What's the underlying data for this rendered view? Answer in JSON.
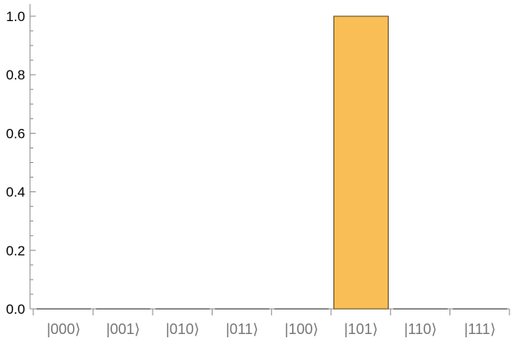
{
  "chart_data": {
    "type": "bar",
    "categories": [
      "|000⟩",
      "|001⟩",
      "|010⟩",
      "|011⟩",
      "|100⟩",
      "|101⟩",
      "|110⟩",
      "|111⟩"
    ],
    "values": [
      0,
      0,
      0,
      0,
      0,
      1,
      0,
      0
    ],
    "ylim": [
      0,
      1
    ],
    "yticks": [
      "0.0",
      "0.2",
      "0.4",
      "0.6",
      "0.8",
      "1.0"
    ],
    "title": "",
    "xlabel": "",
    "ylabel": "",
    "grid": false,
    "bar_color": "#F9BF56",
    "bar_edge_color": "#5a4218"
  }
}
